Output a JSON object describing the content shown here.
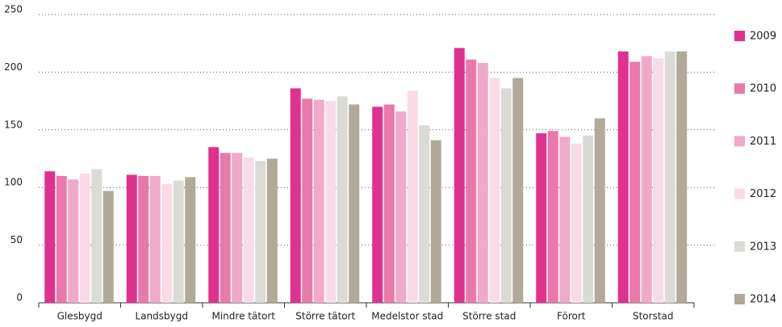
{
  "chart_data": {
    "type": "bar",
    "categories": [
      "Glesbygd",
      "Landsbygd",
      "Mindre tätort",
      "Större tätort",
      "Medelstor stad",
      "Större stad",
      "Förort",
      "Storstad"
    ],
    "series": [
      {
        "name": "2009",
        "color": "#e0318f",
        "values": [
          114,
          111,
          135,
          186,
          170,
          221,
          147,
          218
        ]
      },
      {
        "name": "2010",
        "color": "#e979aa",
        "values": [
          110,
          110,
          130,
          177,
          172,
          211,
          149,
          209
        ]
      },
      {
        "name": "2011",
        "color": "#f1a9c9",
        "values": [
          107,
          110,
          130,
          176,
          166,
          208,
          144,
          214
        ]
      },
      {
        "name": "2012",
        "color": "#f9dbe7",
        "values": [
          112,
          103,
          126,
          175,
          184,
          195,
          138,
          212
        ]
      },
      {
        "name": "2013",
        "color": "#dbdbd5",
        "values": [
          116,
          106,
          123,
          179,
          154,
          186,
          145,
          218
        ]
      },
      {
        "name": "2014",
        "color": "#b1a999",
        "values": [
          97,
          109,
          125,
          172,
          141,
          195,
          160,
          218
        ]
      }
    ],
    "ylim": [
      0,
      250
    ],
    "yticks": [
      0,
      50,
      100,
      150,
      200,
      250
    ],
    "grid": true
  }
}
